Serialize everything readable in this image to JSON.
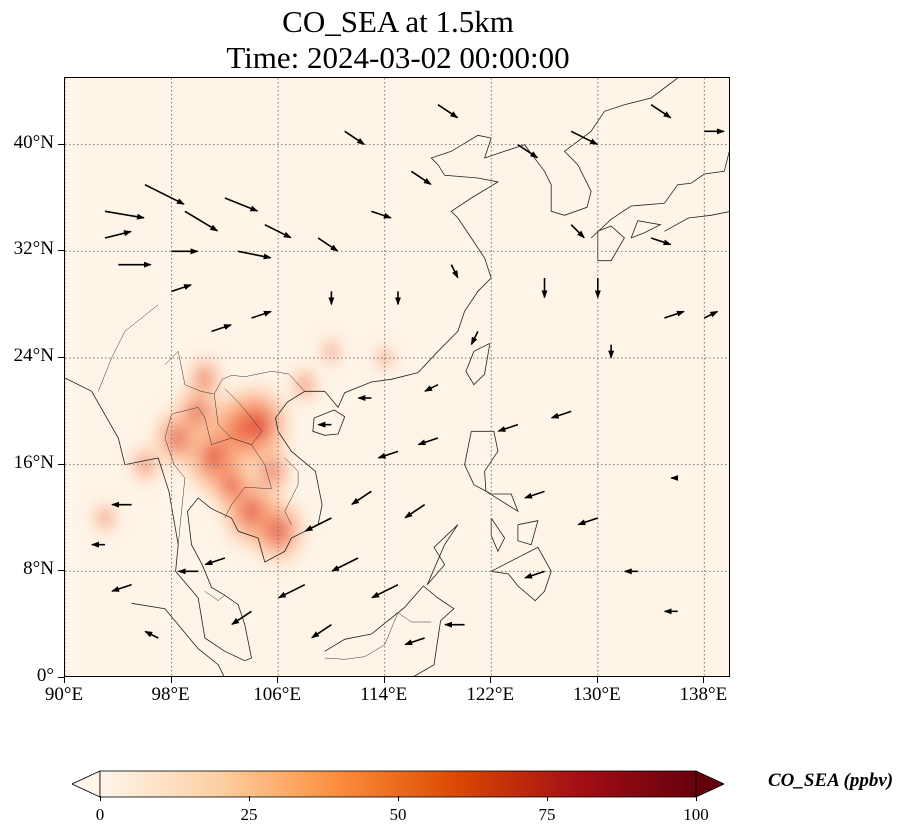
{
  "title": {
    "line1": "CO_SEA at 1.5km",
    "line2": "Time: 2024-03-02 00:00:00"
  },
  "map": {
    "lon_range": [
      90,
      140
    ],
    "lat_range": [
      0,
      45
    ],
    "lat_ticks": [
      {
        "value": 40,
        "label": "40°N"
      },
      {
        "value": 32,
        "label": "32°N"
      },
      {
        "value": 24,
        "label": "24°N"
      },
      {
        "value": 16,
        "label": "16°N"
      },
      {
        "value": 8,
        "label": "8°N"
      },
      {
        "value": 0,
        "label": "0°"
      }
    ],
    "lon_ticks": [
      {
        "value": 90,
        "label": "90°E"
      },
      {
        "value": 98,
        "label": "98°E"
      },
      {
        "value": 106,
        "label": "106°E"
      },
      {
        "value": 114,
        "label": "114°E"
      },
      {
        "value": 122,
        "label": "122°E"
      },
      {
        "value": 130,
        "label": "130°E"
      },
      {
        "value": 138,
        "label": "138°E"
      }
    ],
    "gridlines": true,
    "background_color": "#fef4e8",
    "plume_color": "#d7301f",
    "plumes": [
      {
        "lon": 103.0,
        "lat": 18.5,
        "value": 55
      },
      {
        "lon": 101.2,
        "lat": 16.5,
        "value": 50
      },
      {
        "lon": 104.0,
        "lat": 12.5,
        "value": 50
      },
      {
        "lon": 106.0,
        "lat": 11.0,
        "value": 45
      },
      {
        "lon": 104.5,
        "lat": 19.0,
        "value": 55
      },
      {
        "lon": 98.5,
        "lat": 18.0,
        "value": 40
      },
      {
        "lon": 100.0,
        "lat": 20.0,
        "value": 35
      },
      {
        "lon": 102.5,
        "lat": 14.5,
        "value": 35
      },
      {
        "lon": 105.5,
        "lat": 15.5,
        "value": 30
      },
      {
        "lon": 96.0,
        "lat": 16.0,
        "value": 20
      },
      {
        "lon": 93.0,
        "lat": 12.0,
        "value": 15
      },
      {
        "lon": 108.0,
        "lat": 22.0,
        "value": 18
      },
      {
        "lon": 110.0,
        "lat": 24.5,
        "value": 12
      },
      {
        "lon": 114.0,
        "lat": 24.0,
        "value": 10
      },
      {
        "lon": 100.5,
        "lat": 22.5,
        "value": 25
      }
    ],
    "wind_color": "#000000",
    "wind_vectors": [
      {
        "lon": 96,
        "lat": 37,
        "u": 6,
        "v": -3
      },
      {
        "lon": 99,
        "lat": 35,
        "u": 5,
        "v": -3
      },
      {
        "lon": 102,
        "lat": 36,
        "u": 5,
        "v": -2
      },
      {
        "lon": 93,
        "lat": 35,
        "u": 6,
        "v": -1
      },
      {
        "lon": 94,
        "lat": 31,
        "u": 5,
        "v": 0
      },
      {
        "lon": 93,
        "lat": 33,
        "u": 4,
        "v": 1
      },
      {
        "lon": 98,
        "lat": 32,
        "u": 4,
        "v": 0
      },
      {
        "lon": 103,
        "lat": 32,
        "u": 5,
        "v": -1
      },
      {
        "lon": 105,
        "lat": 34,
        "u": 4,
        "v": -2
      },
      {
        "lon": 98,
        "lat": 29,
        "u": 3,
        "v": 1
      },
      {
        "lon": 101,
        "lat": 26,
        "u": 3,
        "v": 1
      },
      {
        "lon": 104,
        "lat": 27,
        "u": 3,
        "v": 1
      },
      {
        "lon": 109,
        "lat": 33,
        "u": 3,
        "v": -2
      },
      {
        "lon": 113,
        "lat": 35,
        "u": 3,
        "v": -1
      },
      {
        "lon": 116,
        "lat": 38,
        "u": 3,
        "v": -2
      },
      {
        "lon": 111,
        "lat": 41,
        "u": 3,
        "v": -2
      },
      {
        "lon": 118,
        "lat": 43,
        "u": 3,
        "v": -2
      },
      {
        "lon": 124,
        "lat": 40,
        "u": 3,
        "v": -2
      },
      {
        "lon": 128,
        "lat": 41,
        "u": 4,
        "v": -2
      },
      {
        "lon": 134,
        "lat": 43,
        "u": 3,
        "v": -2
      },
      {
        "lon": 138,
        "lat": 41,
        "u": 3,
        "v": 0
      },
      {
        "lon": 134,
        "lat": 33,
        "u": 3,
        "v": -1
      },
      {
        "lon": 128,
        "lat": 34,
        "u": 2,
        "v": -2
      },
      {
        "lon": 126,
        "lat": 30,
        "u": 0,
        "v": -3
      },
      {
        "lon": 130,
        "lat": 30,
        "u": 0,
        "v": -3
      },
      {
        "lon": 135,
        "lat": 27,
        "u": 3,
        "v": 1
      },
      {
        "lon": 138,
        "lat": 27,
        "u": 2,
        "v": 1
      },
      {
        "lon": 131,
        "lat": 25,
        "u": 0,
        "v": -2
      },
      {
        "lon": 110,
        "lat": 29,
        "u": 0,
        "v": -2
      },
      {
        "lon": 115,
        "lat": 29,
        "u": 0,
        "v": -2
      },
      {
        "lon": 119,
        "lat": 31,
        "u": 1,
        "v": -2
      },
      {
        "lon": 121,
        "lat": 26,
        "u": -1,
        "v": -2
      },
      {
        "lon": 118,
        "lat": 22,
        "u": -2,
        "v": -1
      },
      {
        "lon": 113,
        "lat": 21,
        "u": -2,
        "v": 0
      },
      {
        "lon": 110,
        "lat": 19,
        "u": -2,
        "v": 0
      },
      {
        "lon": 115,
        "lat": 17,
        "u": -3,
        "v": -1
      },
      {
        "lon": 118,
        "lat": 18,
        "u": -3,
        "v": -1
      },
      {
        "lon": 124,
        "lat": 19,
        "u": -3,
        "v": -1
      },
      {
        "lon": 128,
        "lat": 20,
        "u": -3,
        "v": -1
      },
      {
        "lon": 113,
        "lat": 14,
        "u": -3,
        "v": -2
      },
      {
        "lon": 117,
        "lat": 13,
        "u": -3,
        "v": -2
      },
      {
        "lon": 110,
        "lat": 12,
        "u": -4,
        "v": -2
      },
      {
        "lon": 112,
        "lat": 9,
        "u": -4,
        "v": -2
      },
      {
        "lon": 115,
        "lat": 7,
        "u": -4,
        "v": -2
      },
      {
        "lon": 108,
        "lat": 7,
        "u": -4,
        "v": -2
      },
      {
        "lon": 104,
        "lat": 5,
        "u": -3,
        "v": -2
      },
      {
        "lon": 110,
        "lat": 4,
        "u": -3,
        "v": -2
      },
      {
        "lon": 117,
        "lat": 3,
        "u": -3,
        "v": -1
      },
      {
        "lon": 120,
        "lat": 4,
        "u": -3,
        "v": 0
      },
      {
        "lon": 126,
        "lat": 8,
        "u": -3,
        "v": -1
      },
      {
        "lon": 130,
        "lat": 12,
        "u": -3,
        "v": -1
      },
      {
        "lon": 126,
        "lat": 14,
        "u": -3,
        "v": -1
      },
      {
        "lon": 95,
        "lat": 7,
        "u": -3,
        "v": -1
      },
      {
        "lon": 93,
        "lat": 10,
        "u": -2,
        "v": 0
      },
      {
        "lon": 95,
        "lat": 13,
        "u": -3,
        "v": 0
      },
      {
        "lon": 97,
        "lat": 3,
        "u": -2,
        "v": 1
      },
      {
        "lon": 100,
        "lat": 8,
        "u": -3,
        "v": 0
      },
      {
        "lon": 102,
        "lat": 9,
        "u": -3,
        "v": -1
      },
      {
        "lon": 136,
        "lat": 15,
        "u": -1,
        "v": 0
      },
      {
        "lon": 133,
        "lat": 8,
        "u": -2,
        "v": 0
      },
      {
        "lon": 136,
        "lat": 5,
        "u": -2,
        "v": 0
      }
    ]
  },
  "colorbar": {
    "title": "CO_SEA (ppbv)",
    "ticks": [
      {
        "value": 0,
        "label": "0"
      },
      {
        "value": 25,
        "label": "25"
      },
      {
        "value": 50,
        "label": "50"
      },
      {
        "value": 75,
        "label": "75"
      },
      {
        "value": 100,
        "label": "100"
      }
    ],
    "range": [
      0,
      100
    ],
    "extend": "both",
    "colors": [
      "#fff5eb",
      "#fdd0a2",
      "#fd8d3c",
      "#d94801",
      "#a50f15",
      "#67000d"
    ]
  }
}
